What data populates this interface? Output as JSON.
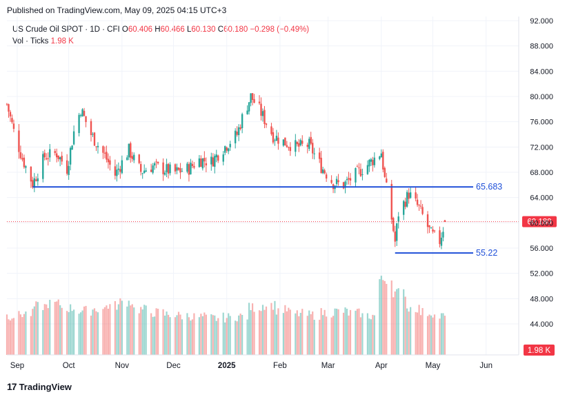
{
  "header": {
    "published": "Published on TradingView.com, May 09, 2025 04:15 UTC+3"
  },
  "legend": {
    "symbol": "US Crude Oil SPOT · 1D · CFI",
    "o_label": "O",
    "o_value": "60.406",
    "h_label": "H",
    "h_value": "60.466",
    "l_label": "L",
    "l_value": "60.130",
    "c_label": "C",
    "c_value": "60.180",
    "change": "−0.298 (−0.49%)",
    "vol_label": "Vol · Ticks",
    "vol_value": "1.98 K"
  },
  "branding": {
    "name": "TradingView"
  },
  "colors": {
    "up": "#26a69a",
    "down": "#ef5350",
    "level": "#1e4fd8",
    "last_price": "#f23645"
  },
  "chart_data": {
    "type": "candlestick",
    "y_axis": {
      "ticks": [
        "92.000",
        "88.000",
        "84.000",
        "80.000",
        "76.000",
        "72.000",
        "68.000",
        "64.000",
        "60.000",
        "56.000",
        "52.000",
        "48.000",
        "44.000"
      ],
      "range": [
        42.0,
        93.0
      ]
    },
    "x_axis": {
      "ticks": [
        "Sep",
        "Oct",
        "Nov",
        "Dec",
        "2025",
        "Feb",
        "Mar",
        "Apr",
        "May",
        "Jun"
      ]
    },
    "price_path": [
      [
        "2024-08-26",
        78.8
      ],
      [
        "2024-08-30",
        74.5
      ],
      [
        "2024-09-04",
        70.2
      ],
      [
        "2024-09-10",
        66.2
      ],
      [
        "2024-09-17",
        70.5
      ],
      [
        "2024-09-24",
        71.0
      ],
      [
        "2024-09-30",
        68.6
      ],
      [
        "2024-10-04",
        74.4
      ],
      [
        "2024-10-08",
        78.0
      ],
      [
        "2024-10-14",
        74.0
      ],
      [
        "2024-10-22",
        70.6
      ],
      [
        "2024-10-28",
        67.6
      ],
      [
        "2024-11-05",
        71.5
      ],
      [
        "2024-11-12",
        68.1
      ],
      [
        "2024-11-19",
        69.0
      ],
      [
        "2024-11-25",
        68.5
      ],
      [
        "2024-12-02",
        68.0
      ],
      [
        "2024-12-10",
        68.6
      ],
      [
        "2024-12-16",
        70.0
      ],
      [
        "2024-12-23",
        69.7
      ],
      [
        "2024-12-30",
        71.8
      ],
      [
        "2025-01-07",
        74.0
      ],
      [
        "2025-01-10",
        76.6
      ],
      [
        "2025-01-15",
        80.0
      ],
      [
        "2025-01-20",
        77.9
      ],
      [
        "2025-01-28",
        73.8
      ],
      [
        "2025-02-04",
        72.7
      ],
      [
        "2025-02-11",
        72.0
      ],
      [
        "2025-02-18",
        72.3
      ],
      [
        "2025-02-25",
        68.9
      ],
      [
        "2025-03-04",
        66.3
      ],
      [
        "2025-03-10",
        66.0
      ],
      [
        "2025-03-17",
        67.6
      ],
      [
        "2025-03-24",
        69.2
      ],
      [
        "2025-04-01",
        71.2
      ],
      [
        "2025-04-03",
        66.9
      ],
      [
        "2025-04-07",
        60.7
      ],
      [
        "2025-04-09",
        57.0
      ],
      [
        "2025-04-11",
        61.5
      ],
      [
        "2025-04-17",
        64.6
      ],
      [
        "2025-04-23",
        62.3
      ],
      [
        "2025-04-30",
        58.2
      ],
      [
        "2025-05-05",
        57.1
      ],
      [
        "2025-05-08",
        60.18
      ]
    ],
    "levels": [
      {
        "label": "65.683",
        "value": 65.683,
        "from": "2024-09-10"
      },
      {
        "label": "55.22",
        "value": 55.22,
        "from": "2025-04-09"
      }
    ],
    "last_price": {
      "label": "60.180",
      "value": 60.18
    },
    "volume_label": "1.98 K",
    "volume_trend": [
      45.3,
      45.6,
      46.8,
      47.2,
      46.5,
      46.1,
      46.4,
      46.9,
      47.5,
      46.3,
      45.8,
      45.5,
      45.3,
      45.1,
      44.9,
      45.0,
      45.2,
      46.6,
      47.0,
      46.2,
      45.6,
      45.4,
      45.8,
      46.0,
      45.7,
      45.3,
      51.0,
      49.0,
      46.5,
      45.8,
      45.2
    ]
  }
}
